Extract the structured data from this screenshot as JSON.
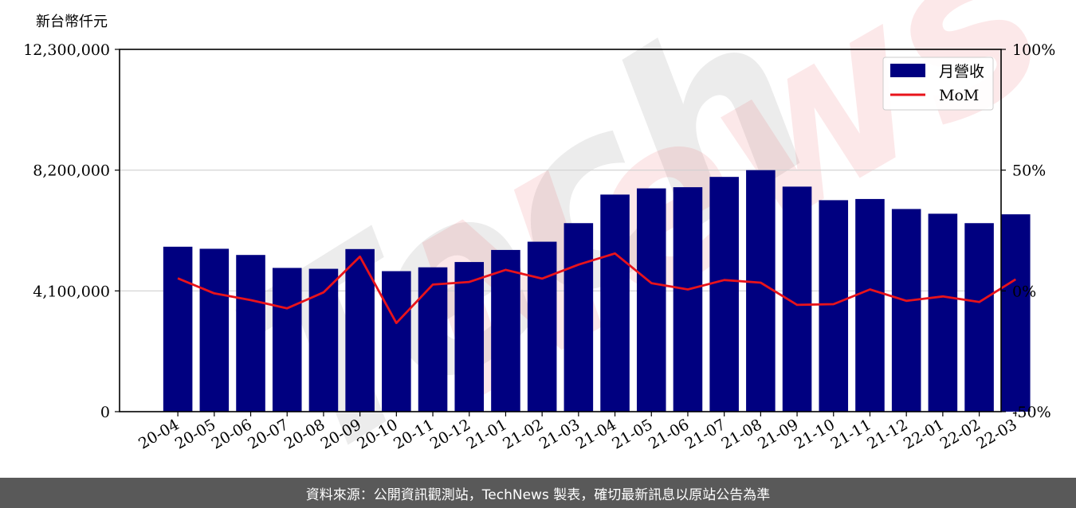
{
  "chart_data": {
    "type": "bar",
    "unit_label": "新台幣仟元",
    "categories": [
      "20-04",
      "20-05",
      "20-06",
      "20-07",
      "20-08",
      "20-09",
      "20-10",
      "20-11",
      "20-12",
      "21-01",
      "21-02",
      "21-03",
      "21-04",
      "21-05",
      "21-06",
      "21-07",
      "21-08",
      "21-09",
      "21-10",
      "21-11",
      "21-12",
      "22-01",
      "22-02",
      "22-03"
    ],
    "series": [
      {
        "name": "月營收",
        "type": "bar",
        "axis": "left",
        "color": "#000080",
        "values": [
          5600000,
          5530000,
          5320000,
          4880000,
          4850000,
          5520000,
          4770000,
          4900000,
          5080000,
          5490000,
          5770000,
          6400000,
          7370000,
          7580000,
          7620000,
          7970000,
          8200000,
          7640000,
          7180000,
          7220000,
          6880000,
          6720000,
          6400000,
          6700000
        ]
      },
      {
        "name": "MoM",
        "type": "line",
        "axis": "right",
        "color": "#e8131b",
        "values": [
          5.2,
          -1.0,
          -3.8,
          -7.2,
          -0.6,
          14.2,
          -13.3,
          2.6,
          3.7,
          8.7,
          5.1,
          10.9,
          15.5,
          3.2,
          0.6,
          4.5,
          3.4,
          -5.8,
          -5.5,
          0.6,
          -4.1,
          -2.3,
          -4.6,
          4.8
        ]
      }
    ],
    "left_axis": {
      "min": 0,
      "max": 12300000,
      "ticks": [
        "0",
        "4,100,000",
        "8,200,000",
        "12,300,000"
      ]
    },
    "right_axis": {
      "min": -50,
      "max": 100,
      "ticks": [
        "-50%",
        "0%",
        "50%",
        "100%"
      ]
    },
    "grid": true,
    "legend_position": "top-right",
    "watermark": "TechNews"
  },
  "footer": {
    "text": "資料來源：公開資訊觀測站，TechNews 製表，確切最新訊息以原站公告為準"
  }
}
